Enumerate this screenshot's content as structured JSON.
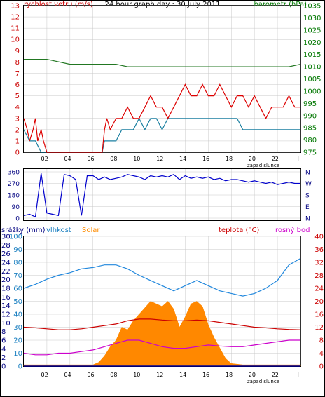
{
  "panel1": {
    "title": "24 hour graph day : 30 July 2011",
    "left_label": "rychlost vetru (m/s)",
    "right_label": "barometr (hPa)",
    "sunset_label": "západ slunce"
  },
  "panel3": {
    "rain_label": "srážky (mm)",
    "humidity_label": "vlhkost",
    "solar_label": "Solar",
    "temp_label": "teplota (°C)",
    "dew_label": "rosný bod",
    "sunset_label": "západ slunce"
  },
  "colors": {
    "wind_gust": "#dd0000",
    "wind_avg": "#1a7fa0",
    "pressure": "#227722",
    "direction": "#0000cc",
    "humidity": "#2288dd",
    "solar": "#ff8800",
    "rain": "#000099",
    "temperature": "#cc0000",
    "dewpoint": "#cc00cc",
    "grid": "#c8c8c8"
  },
  "chart_data": [
    {
      "type": "line",
      "title": "24 hour graph day : 30 July 2011",
      "x_ticks": [
        "02",
        "04",
        "06",
        "08",
        "10",
        "12",
        "14",
        "16",
        "18",
        "20",
        "22",
        "l"
      ],
      "xlim": [
        0,
        24
      ],
      "left_axis": {
        "label": "rychlost vetru (m/s)",
        "ylim": [
          0,
          13
        ],
        "ticks": [
          "0",
          "1",
          "2",
          "3",
          "4",
          "5",
          "6",
          "7",
          "8",
          "9",
          "10",
          "11",
          "12",
          "13"
        ]
      },
      "right_axis": {
        "label": "barometr (hPa)",
        "ylim": [
          975,
          1035
        ],
        "ticks": [
          "975",
          "980",
          "985",
          "990",
          "995",
          "1000",
          "1005",
          "1010",
          "1015",
          "1020",
          "1025",
          "1030",
          "1035"
        ]
      },
      "annotation": "západ slunce",
      "grid": true,
      "series": [
        {
          "axis": "left",
          "x": [
            0,
            0.3,
            0.5,
            0.8,
            1,
            1.2,
            1.5,
            1.7,
            2,
            2.5,
            3,
            4,
            5,
            6,
            6.8,
            7,
            7.2,
            7.5,
            8,
            8.5,
            9,
            9.5,
            10,
            10.5,
            11,
            11.5,
            12,
            12.5,
            13,
            13.5,
            14,
            14.5,
            15,
            15.5,
            16,
            16.5,
            17,
            17.5,
            18,
            18.5,
            19,
            19.5,
            20,
            20.5,
            21,
            21.5,
            22,
            22.5,
            23,
            23.5,
            24
          ],
          "y": [
            3,
            2,
            1,
            2,
            3,
            1,
            2,
            1,
            0,
            0,
            0,
            0,
            0,
            0,
            0,
            2,
            3,
            2,
            3,
            3,
            4,
            3,
            3,
            4,
            5,
            4,
            4,
            3,
            4,
            5,
            6,
            5,
            5,
            6,
            5,
            5,
            6,
            5,
            4,
            5,
            5,
            4,
            5,
            4,
            3,
            4,
            4,
            4,
            5,
            4,
            4
          ]
        },
        {
          "axis": "left",
          "x": [
            0,
            0.5,
            1,
            1.5,
            2,
            2.5,
            3,
            4,
            5,
            6,
            6.8,
            7,
            7.5,
            8,
            8.5,
            9,
            9.5,
            10,
            10.5,
            11,
            11.5,
            12,
            12.5,
            13,
            13.5,
            14,
            14.5,
            15,
            15.5,
            16,
            16.5,
            17,
            17.5,
            18,
            18.5,
            19,
            19.5,
            20,
            20.5,
            21,
            21.5,
            22,
            22.5,
            23,
            23.5,
            24
          ],
          "y": [
            2,
            1,
            1,
            0,
            0,
            0,
            0,
            0,
            0,
            0,
            0,
            1,
            1,
            1,
            2,
            2,
            2,
            3,
            2,
            3,
            3,
            2,
            3,
            3,
            3,
            3,
            3,
            3,
            3,
            3,
            3,
            3,
            3,
            3,
            3,
            2,
            2,
            2,
            2,
            2,
            2,
            2,
            2,
            2,
            2,
            2
          ]
        },
        {
          "axis": "right",
          "x": [
            0,
            1,
            2,
            3,
            4,
            5,
            6,
            7,
            8,
            9,
            10,
            11,
            12,
            13,
            14,
            15,
            16,
            17,
            18,
            19,
            20,
            21,
            22,
            23,
            24
          ],
          "y": [
            1013,
            1013,
            1013,
            1012,
            1011,
            1011,
            1011,
            1011,
            1011,
            1010,
            1010,
            1010,
            1010,
            1010,
            1010,
            1010,
            1010,
            1010,
            1010,
            1010,
            1010,
            1010,
            1010,
            1010,
            1011
          ]
        }
      ]
    },
    {
      "type": "scatter",
      "title": "",
      "x_ticks": [
        "02",
        "04",
        "06",
        "08",
        "10",
        "12",
        "14",
        "16",
        "18",
        "20",
        "22",
        "l"
      ],
      "xlim": [
        0,
        24
      ],
      "left_axis": {
        "label": "",
        "ylim": [
          0,
          360
        ],
        "ticks": [
          "0",
          "90",
          "180",
          "270",
          "360"
        ]
      },
      "right_axis": {
        "label": "",
        "ticks": [
          "N",
          "E",
          "S",
          "W",
          "N"
        ]
      },
      "series": [
        {
          "x": [
            0,
            0.5,
            1,
            1.5,
            2,
            2.5,
            3,
            3.5,
            4,
            4.5,
            5,
            5.5,
            6,
            6.5,
            7,
            7.5,
            8,
            8.5,
            9,
            9.5,
            10,
            10.5,
            11,
            11.5,
            12,
            12.5,
            13,
            13.5,
            14,
            14.5,
            15,
            15.5,
            16,
            16.5,
            17,
            17.5,
            18,
            18.5,
            19,
            19.5,
            20,
            20.5,
            21,
            21.5,
            22,
            22.5,
            23,
            23.5,
            24
          ],
          "y": [
            20,
            30,
            10,
            350,
            40,
            30,
            20,
            340,
            330,
            300,
            20,
            330,
            330,
            300,
            320,
            300,
            310,
            320,
            340,
            330,
            320,
            300,
            330,
            320,
            330,
            320,
            340,
            300,
            330,
            310,
            320,
            310,
            320,
            300,
            310,
            290,
            300,
            300,
            290,
            280,
            290,
            280,
            270,
            280,
            260,
            270,
            280,
            270,
            270
          ]
        }
      ]
    },
    {
      "type": "line",
      "title": "",
      "x_ticks": [
        "02",
        "04",
        "06",
        "08",
        "10",
        "12",
        "14",
        "16",
        "18",
        "20",
        "22",
        "l"
      ],
      "xlim": [
        0,
        24
      ],
      "rain_axis": {
        "label": "srážky (mm)",
        "ylim": [
          0,
          30
        ],
        "ticks": [
          "0",
          "2",
          "4",
          "6",
          "8",
          "10",
          "12",
          "14",
          "16",
          "18",
          "20",
          "22",
          "24",
          "26",
          "28",
          "30"
        ]
      },
      "humidity_axis": {
        "label": "vlhkost",
        "ylim": [
          0,
          100
        ],
        "ticks": [
          "0",
          "10",
          "20",
          "30",
          "40",
          "50",
          "60",
          "70",
          "80",
          "90",
          "100"
        ]
      },
      "temp_axis": {
        "label": "teplota (°C)",
        "ylim": [
          0,
          40
        ],
        "ticks": [
          "0",
          "4",
          "8",
          "12",
          "16",
          "20",
          "24",
          "28",
          "32",
          "36",
          "40"
        ]
      },
      "annotation": "západ slunce",
      "grid": true,
      "series": [
        {
          "name": "vlhkost",
          "axis": "humidity",
          "x": [
            0,
            1,
            2,
            3,
            4,
            5,
            6,
            7,
            8,
            9,
            10,
            11,
            12,
            13,
            14,
            15,
            16,
            17,
            18,
            19,
            20,
            21,
            22,
            23,
            24
          ],
          "y": [
            60,
            63,
            67,
            70,
            72,
            75,
            76,
            78,
            78,
            75,
            70,
            66,
            62,
            58,
            62,
            66,
            62,
            58,
            56,
            54,
            56,
            60,
            66,
            78,
            83
          ]
        },
        {
          "name": "Solar",
          "axis": "humidity",
          "x": [
            0,
            2,
            4,
            6,
            6.5,
            7,
            7.5,
            8,
            8.5,
            9,
            9.5,
            10,
            10.5,
            11,
            11.5,
            12,
            12.5,
            13,
            13.5,
            14,
            14.5,
            15,
            15.5,
            16,
            16.5,
            17,
            17.5,
            18,
            19,
            20,
            22,
            24
          ],
          "y": [
            1,
            1,
            1,
            1,
            3,
            8,
            15,
            20,
            30,
            28,
            35,
            40,
            45,
            50,
            48,
            46,
            50,
            44,
            30,
            38,
            48,
            50,
            46,
            32,
            22,
            14,
            6,
            2,
            1,
            1,
            1,
            1
          ]
        },
        {
          "name": "teplota",
          "axis": "temp",
          "x": [
            0,
            1,
            2,
            3,
            4,
            5,
            6,
            7,
            8,
            9,
            10,
            11,
            12,
            13,
            14,
            15,
            16,
            17,
            18,
            19,
            20,
            21,
            22,
            23,
            24
          ],
          "y": [
            12,
            11.8,
            11.5,
            11.2,
            11.2,
            11.5,
            12,
            12.5,
            13,
            14,
            14.5,
            14.5,
            14.2,
            14,
            14,
            14.2,
            14,
            13.5,
            13,
            12.5,
            12,
            11.8,
            11.5,
            11.3,
            11.2
          ]
        },
        {
          "name": "rosný bod",
          "axis": "temp",
          "x": [
            0,
            1,
            2,
            3,
            4,
            5,
            6,
            7,
            8,
            9,
            10,
            11,
            12,
            13,
            14,
            15,
            16,
            17,
            18,
            19,
            20,
            21,
            22,
            23,
            24
          ],
          "y": [
            4,
            3.5,
            3.5,
            4,
            4,
            4.5,
            5,
            6,
            7,
            8,
            8,
            7,
            6,
            5.5,
            5.5,
            6,
            6.5,
            6.2,
            6,
            6,
            6.5,
            7,
            7.5,
            8,
            8
          ]
        },
        {
          "name": "srážky",
          "axis": "rain",
          "x": [
            0,
            24
          ],
          "y": [
            0,
            0
          ]
        }
      ]
    }
  ]
}
